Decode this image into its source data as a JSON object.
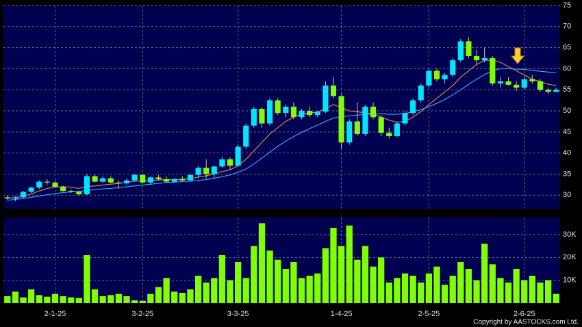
{
  "chart_data": [
    {
      "type": "candlestick",
      "up_color": "#00e5ff",
      "down_color": "#80ff00",
      "wick_color": "#c8c8c8",
      "open": [
        29.5,
        29.2,
        29.5,
        30.8,
        31.8,
        33.2,
        33.0,
        32.0,
        31.0,
        30.8,
        30.2,
        34.5,
        33.2,
        34,
        33,
        32.8,
        33.5,
        34.8,
        33,
        34.2,
        33.8,
        33.2,
        33.8,
        33.5,
        34.8,
        36.5,
        35,
        36.8,
        38.5,
        37,
        41.5,
        46.5,
        50.5,
        47,
        52.5,
        49.5,
        51,
        48.5,
        50,
        49,
        49.8,
        56,
        53.5,
        42.5,
        47.5,
        44.5,
        51,
        48.5,
        44.8,
        44,
        47,
        49.5,
        52.5,
        56,
        59.5,
        57.5,
        58.5,
        62,
        66.5,
        63,
        62,
        62.5,
        56.5,
        57,
        56.2,
        55.5,
        57.5,
        57,
        55,
        54.5
      ],
      "high": [
        30,
        29.8,
        31,
        32,
        33.5,
        33.8,
        33.5,
        32.3,
        31.5,
        31.0,
        35,
        34.8,
        34.5,
        34.5,
        33.5,
        34,
        35,
        35,
        34.5,
        34.8,
        34.5,
        34,
        34.5,
        35,
        37,
        38.5,
        37,
        39,
        39,
        42,
        47,
        51,
        51,
        53,
        53,
        51.5,
        52,
        50.5,
        51,
        50,
        57,
        58,
        54,
        48,
        52,
        51.5,
        52,
        49,
        46,
        47.5,
        50,
        53,
        56.5,
        60,
        60,
        59,
        62.5,
        67,
        67.5,
        64.5,
        65,
        63,
        58,
        58,
        57,
        58,
        58.5,
        57.5,
        55.5,
        55.5
      ],
      "low": [
        28.8,
        28.6,
        29.3,
        30.5,
        31.5,
        32.5,
        31.8,
        30.8,
        30.5,
        29.8,
        30,
        33,
        33,
        32.8,
        31.5,
        32.5,
        33.2,
        32.8,
        32.5,
        33.5,
        33,
        33,
        33.2,
        33.3,
        34,
        34,
        34,
        36.5,
        36,
        36.8,
        41,
        46,
        46,
        46.5,
        49,
        48.5,
        48,
        48,
        48.5,
        48.5,
        49.5,
        53,
        41,
        42,
        44,
        44,
        48,
        44,
        43.5,
        43.8,
        46.5,
        49,
        52,
        55.5,
        57,
        56.5,
        58,
        61.5,
        62.5,
        61,
        61.5,
        56,
        55.5,
        56,
        54.8,
        55,
        56.5,
        54.5,
        54,
        54.5
      ],
      "close": [
        29.2,
        29.5,
        30.8,
        31.8,
        33.2,
        33.0,
        32.0,
        31.0,
        30.8,
        30.2,
        34.5,
        33.2,
        34,
        33,
        32.8,
        33.5,
        34.8,
        33,
        34.2,
        33.8,
        33.2,
        33.8,
        33.5,
        34.8,
        36.5,
        35,
        36.8,
        38.5,
        37,
        41.5,
        46.5,
        50.5,
        47,
        52.5,
        49.5,
        51,
        48.5,
        50,
        49,
        49.8,
        56,
        53.5,
        42.5,
        47.5,
        44.5,
        51,
        48.5,
        44.8,
        44,
        47,
        49.5,
        52.5,
        56,
        59.5,
        57.5,
        58.5,
        62,
        66.5,
        63,
        62,
        62.5,
        56.5,
        57,
        56.2,
        55.5,
        57.5,
        57,
        55,
        54.5,
        55
      ],
      "series": [
        {
          "color": "#e0804a",
          "values": [
            29.3,
            29.4,
            29.8,
            30.3,
            31,
            31.6,
            31.9,
            32,
            31.9,
            31.6,
            32,
            32.2,
            32.4,
            32.6,
            32.8,
            33,
            33.3,
            33.4,
            33.5,
            33.6,
            33.7,
            33.7,
            33.8,
            33.9,
            34.3,
            34.6,
            35,
            35.6,
            36,
            37,
            38.5,
            40.5,
            42.5,
            44.5,
            46,
            47.5,
            48.5,
            49.3,
            49.5,
            49.7,
            50.5,
            51.5,
            50.8,
            50,
            49.8,
            49.5,
            49.3,
            48.5,
            47.8,
            47.3,
            47.5,
            48.5,
            49.8,
            51.5,
            53,
            54.5,
            56,
            58,
            59.5,
            61,
            62,
            62,
            61.5,
            60.5,
            59.5,
            58.5,
            57.5,
            57,
            56.3,
            56
          ]
        },
        {
          "color": "#3aa0ff",
          "values": [
            28.8,
            29,
            29.2,
            29.5,
            29.8,
            30.1,
            30.4,
            30.6,
            30.8,
            30.9,
            31.1,
            31.3,
            31.5,
            31.6,
            31.8,
            32,
            32.2,
            32.4,
            32.6,
            32.8,
            33,
            33.1,
            33.2,
            33.3,
            33.5,
            33.7,
            34,
            34.4,
            34.8,
            35.4,
            36.2,
            37.4,
            38.8,
            40.2,
            41.6,
            42.8,
            43.9,
            44.9,
            45.8,
            46.6,
            47.5,
            48.3,
            48.6,
            48.8,
            49,
            49.2,
            49.3,
            49.3,
            49.2,
            49.2,
            49.4,
            49.8,
            50.3,
            51,
            51.8,
            52.7,
            53.8,
            55,
            56.3,
            57.5,
            58.6,
            59.5,
            60,
            60,
            59.9,
            59.8,
            59.6,
            59.4,
            59.2,
            59
          ]
        }
      ],
      "ylim": [
        26.8,
        75
      ],
      "yticks": [
        30,
        35,
        40,
        45,
        50,
        55,
        60,
        65,
        70,
        75
      ],
      "grid": true
    },
    {
      "type": "bar",
      "color": "#80ff00",
      "categories": [
        null,
        null,
        null,
        null,
        null,
        null,
        "2-1-25",
        null,
        null,
        null,
        null,
        null,
        null,
        null,
        null,
        null,
        null,
        "3-2-25",
        null,
        null,
        null,
        null,
        null,
        null,
        null,
        null,
        null,
        null,
        null,
        "3-3-25",
        null,
        null,
        null,
        null,
        null,
        null,
        null,
        null,
        null,
        null,
        null,
        null,
        "1-4-25",
        null,
        null,
        null,
        null,
        null,
        null,
        null,
        null,
        null,
        null,
        "2-5-25",
        null,
        null,
        null,
        null,
        null,
        null,
        null,
        null,
        null,
        null,
        null,
        "2-6-25",
        null,
        null,
        null,
        null
      ],
      "values": [
        3000,
        5000,
        2500,
        6000,
        3500,
        2800,
        4000,
        3000,
        2500,
        2200,
        21000,
        6000,
        3000,
        3500,
        4000,
        3000,
        1200,
        1000,
        4000,
        7000,
        11000,
        5000,
        4500,
        6000,
        12000,
        9000,
        11000,
        21000,
        10000,
        18000,
        11000,
        25000,
        35000,
        23000,
        19000,
        15000,
        18000,
        11000,
        12000,
        13000,
        24000,
        33000,
        25000,
        34000,
        19000,
        25000,
        16000,
        20000,
        9000,
        11000,
        13000,
        12000,
        9000,
        13000,
        16000,
        8000,
        12000,
        18000,
        15000,
        10000,
        26000,
        17000,
        11000,
        9000,
        15000,
        10000,
        12000,
        9000,
        10000,
        4000
      ],
      "ylim": [
        0,
        37500
      ],
      "yticks": [
        {
          "value": 10000,
          "label": "10K"
        },
        {
          "value": 20000,
          "label": "20K"
        },
        {
          "value": 30000,
          "label": "30K"
        }
      ],
      "grid": true
    }
  ],
  "footer": "Copyright by AASTOCKS.com Ltd."
}
